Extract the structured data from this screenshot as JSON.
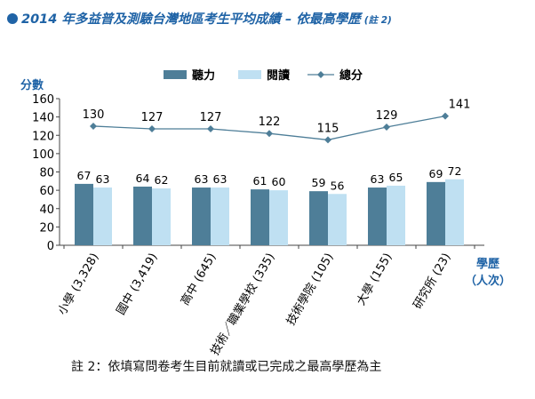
{
  "title": {
    "text": "2014 年多益普及測驗台灣地區考生平均成績 – 依最高學歷",
    "note": "(註 2)"
  },
  "footnote": "註 2：依填寫問卷考生目前就讀或已完成之最高學歷為主",
  "colors": {
    "title": "#1f63a6",
    "listening": "#4e7e98",
    "reading": "#bfe0f2",
    "total": "#4e7e98",
    "axis_label": "#1f63a6"
  },
  "chart_data": {
    "type": "bar",
    "ylabel": "分數",
    "xlabel": [
      "學歷",
      "（人次）"
    ],
    "ylim": [
      0,
      160
    ],
    "yticks": [
      0,
      20,
      40,
      60,
      80,
      100,
      120,
      140,
      160
    ],
    "categories": [
      "小學 (3,328)",
      "國中 (3,419)",
      "高中 (645)",
      "技術／職業學校 (335)",
      "技術學院 (105)",
      "大學 (155)",
      "研究所 (23)"
    ],
    "series": [
      {
        "name": "聽力",
        "type": "bar",
        "values": [
          67,
          64,
          63,
          61,
          59,
          63,
          69
        ]
      },
      {
        "name": "閱讀",
        "type": "bar",
        "values": [
          63,
          62,
          63,
          60,
          56,
          65,
          72
        ]
      },
      {
        "name": "總分",
        "type": "line",
        "values": [
          130,
          127,
          127,
          122,
          115,
          129,
          141
        ]
      }
    ],
    "legend_position": "top-center",
    "grid": false
  }
}
